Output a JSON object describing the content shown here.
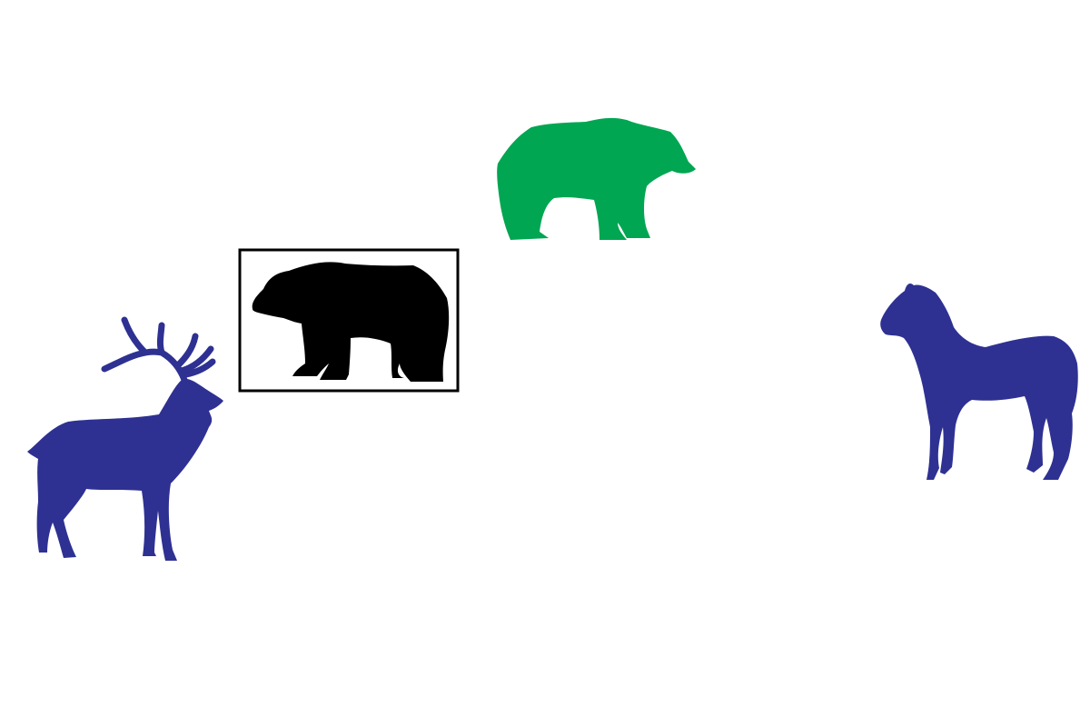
{
  "scene": {
    "background_color": "#ffffff",
    "animals": [
      {
        "id": "elk",
        "kind": "elk",
        "icon": "elk-icon",
        "color": "#2e3192",
        "selected": false
      },
      {
        "id": "bear-black",
        "kind": "bear",
        "icon": "bear-icon",
        "color": "#000000",
        "selected": true
      },
      {
        "id": "bear-green",
        "kind": "bear",
        "icon": "bear-icon",
        "color": "#00a651",
        "selected": false
      },
      {
        "id": "horse",
        "kind": "horse",
        "icon": "horse-icon",
        "color": "#2e3192",
        "selected": false
      }
    ],
    "selection_frame_color": "#000000"
  }
}
